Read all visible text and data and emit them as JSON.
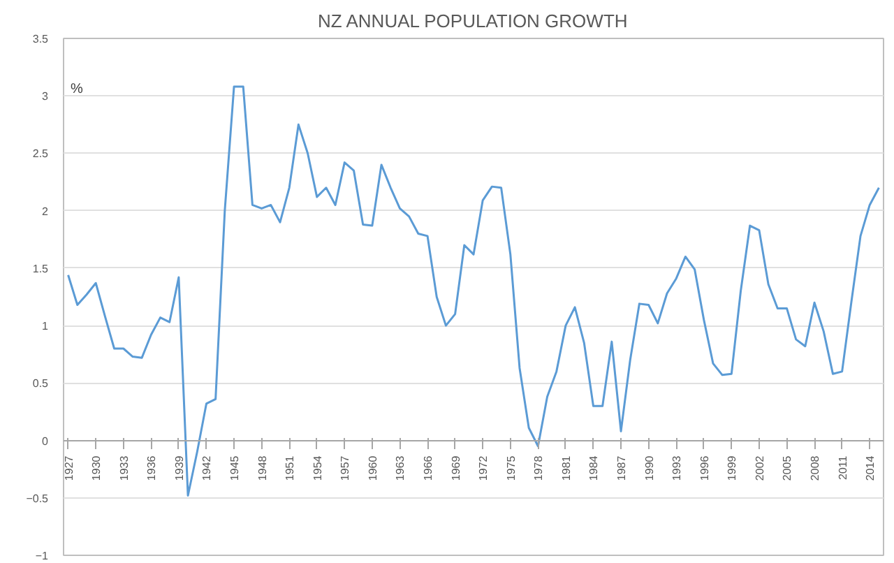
{
  "chart_data": {
    "type": "line",
    "title": "NZ ANNUAL POPULATION GROWTH",
    "ylabel": "%",
    "x": [
      1927,
      1928,
      1929,
      1930,
      1931,
      1932,
      1933,
      1934,
      1935,
      1936,
      1937,
      1938,
      1939,
      1940,
      1941,
      1942,
      1943,
      1944,
      1945,
      1946,
      1947,
      1948,
      1949,
      1950,
      1951,
      1952,
      1953,
      1954,
      1955,
      1956,
      1957,
      1958,
      1959,
      1960,
      1961,
      1962,
      1963,
      1964,
      1965,
      1966,
      1967,
      1968,
      1969,
      1970,
      1971,
      1972,
      1973,
      1974,
      1975,
      1976,
      1977,
      1978,
      1979,
      1980,
      1981,
      1982,
      1983,
      1984,
      1985,
      1986,
      1987,
      1988,
      1989,
      1990,
      1991,
      1992,
      1993,
      1994,
      1995,
      1996,
      1997,
      1998,
      1999,
      2000,
      2001,
      2002,
      2003,
      2004,
      2005,
      2006,
      2007,
      2008,
      2009,
      2010,
      2011,
      2012,
      2013,
      2014,
      2015
    ],
    "series": [
      {
        "color": "#5b9bd5",
        "values": [
          1.44,
          1.18,
          1.27,
          1.37,
          1.08,
          0.8,
          0.8,
          0.73,
          0.72,
          0.92,
          1.07,
          1.03,
          1.42,
          -0.48,
          -0.1,
          0.32,
          0.36,
          2.0,
          3.08,
          3.08,
          2.05,
          2.02,
          2.05,
          1.9,
          2.2,
          2.75,
          2.5,
          2.12,
          2.2,
          2.05,
          2.42,
          2.35,
          1.88,
          1.87,
          2.4,
          2.2,
          2.02,
          1.95,
          1.8,
          1.78,
          1.25,
          1.0,
          1.1,
          1.7,
          1.62,
          2.09,
          2.21,
          2.2,
          1.62,
          0.63,
          0.11,
          -0.05,
          0.38,
          0.6,
          1.0,
          1.16,
          0.85,
          0.3,
          0.3,
          0.86,
          0.08,
          0.7,
          1.19,
          1.18,
          1.02,
          1.28,
          1.41,
          1.6,
          1.49,
          1.05,
          0.67,
          0.57,
          0.58,
          1.3,
          1.87,
          1.83,
          1.36,
          1.15,
          1.15,
          0.88,
          0.82,
          1.2,
          0.95,
          0.58,
          0.6,
          1.2,
          1.78,
          2.05,
          2.2
        ]
      }
    ],
    "xlim": [
      1926.5,
      2015.5
    ],
    "xticks": [
      1927,
      1930,
      1933,
      1936,
      1939,
      1942,
      1945,
      1948,
      1951,
      1954,
      1957,
      1960,
      1963,
      1966,
      1969,
      1972,
      1975,
      1978,
      1981,
      1984,
      1987,
      1990,
      1993,
      1996,
      1999,
      2002,
      2005,
      2008,
      2011,
      2014
    ],
    "ylim": [
      -1,
      3.5
    ],
    "yticks": [
      -1,
      -0.5,
      0,
      0.5,
      1,
      1.5,
      2,
      2.5,
      3,
      3.5
    ],
    "grid": "y",
    "line_style": "solid"
  }
}
